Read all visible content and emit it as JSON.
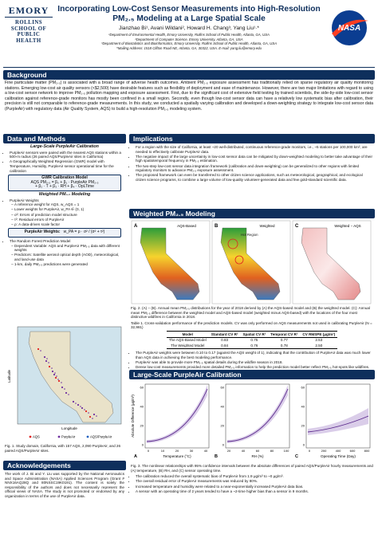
{
  "header": {
    "logo_left": [
      "EMORY",
      "ROLLINS",
      "SCHOOL OF",
      "PUBLIC",
      "HEALTH"
    ],
    "title_line1": "Incorporating Low-Cost Sensor Measurements into High-Resolution",
    "title_line2": "PM₂.₅ Modeling at a Large Spatial Scale",
    "authors": "Jianzhao Bi¹, Avani Wildani², Howard H. Chang³, Yang Liu¹·*",
    "affiliations": [
      "¹Department of Environmental Health, Emory University, Rollins School of Public Health, Atlanta, GA, USA",
      "²Department of Computer Science, Emory University, Atlanta, GA, USA",
      "³Department of Biostatistics and Bioinformatics, Emory University, Rollins School of Public Health, Atlanta, GA, USA",
      "*Mailing Address: 1518 Clifton Road NE, Atlanta, GA, 30322, USA. E-mail: yang.liu@emory.edu"
    ],
    "logo_right": "NASA"
  },
  "background": {
    "heading": "Background",
    "text": "Fine particulate matter (PM₂.₅) is associated with a broad range of adverse health outcomes. Ambient PM₂.₅ exposure assessment has traditionally relied on sparse regulatory air quality monitoring stations. Emerging low-cost air quality sensors (<$2,500) have desirable features such as flexibility of deployment and ease of maintenance. However, there are two major limitations with regard to using a low-cost sensor network to improve PM₂.₅ pollution mapping and exposure assessment. First, due to the significant cost of extensive field testing by trained scientists, the side-by-side low-cost sensor calibration against reference-grade monitors has mostly been confined in a small region. Secondly, even though low-cost sensor data can have a relatively low systematic bias after calibration, their precision is still not comparable to reference-grade measurements. In this study, we conducted a spatially varying calibration and developed a down-weighting strategy to integrate low-cost sensor data (PurpleAir) with regulatory data (Air Quality System, AQS) to build a high-resolution PM₂.₅ modeling system."
  },
  "methods": {
    "heading": "Data and Methods",
    "sub1": "Large-Scale PurpleAir Calibration",
    "bullets1": [
      "PurpleAir sensors were paired with the nearest AQS stations within a 500-m radius (26 paired AQS/PurpleAir sites in California)",
      "A Geographically Weighted Regression (GWR) model with Temperature, Humidity, PurpleAir sensor operational time for the calibration"
    ],
    "gwr_title": "GWR Calibration Model",
    "gwr_lines": [
      "AQS PM₂.₅ = β₀ + β₁ · PurpleAir PM₂.₅",
      "+ β₂ · T + β₃ · RH + β₄ · OpLTime"
    ],
    "sub2": "Weighted PM₂.₅ Modeling",
    "weights_title": "PurpleAir Weights",
    "weights_items": [
      "A reference weight for AQS, w_AQS = 1",
      "Lower weights for PurpleAir, w_PA ∈ (0, 1)",
      "σ²: Errors of prediction model structure",
      "τ²: Residual errors of PurpleAir",
      "ρ: A data-driven scale factor"
    ],
    "formula_label": "PurpleAir Weights:",
    "formula": "w_PA = ρ · σ² / (σ² + τ²)",
    "rf_title": "The Random Forest Prediction Model",
    "rf_items": [
      "Dependent Variable: AQS and PurpleAir PM₂.₅ data with different weights",
      "Predictors: Satellite aerosol optical depth (AOD), meteorological, and land-use data",
      "1-km, daily PM₂.₅ predictions were generated"
    ],
    "map_ylabel": "Latitude",
    "map_xlabel": "Longitude",
    "legend": [
      "AQS",
      "PurpleAir",
      "AQS/PurpleAir"
    ],
    "fig_caption": "Fig. 1. Study domain, California, with 157 AQS, 2,090 PurpleAir, and 26 paired AQS/PurpleAir sites."
  },
  "acknowledgements": {
    "heading": "Acknowledgements",
    "text": "The work of J. Bi and Y. Liu was supported by the National Aeronautics and Space Administration (NASA) Applied Sciences Program (Grant # NNX16AQ28Q and 80NSSC19K0191). The content is solely the responsibility of the authors and does not necessarily represent the official views of NASA. The study is not promoted or endorsed by any organization in terms of the use of PurpleAir data."
  },
  "implications": {
    "heading": "Implications",
    "bullets": [
      "For a region with the size of California, at least ~20 well-distributed, continuous reference-grade monitors, i.e., ~5 stations per 100,000 km², are needed to effectively calibrate PurpleAir data.",
      "The negative impact of the large uncertainty in low-cost sensor data can be mitigated by down-weighted modeling to better take advantage of their high spatiotemporal frequency in PM₂.₅ estimation.",
      "The two-step low-cost sensor data integration framework (calibration and down-weighting) can be generalized to other regions with limited regulatory monitors to advance PM₂.₅ exposure assessment.",
      "The proposed framework can even be transferred to other citizen science applications, such as meteorological, geographical, and ecological citizen science programs, to combine a large volume of low-quality volunteer-generated data and few gold-standard scientific data."
    ]
  },
  "weighted": {
    "heading": "Weighted PM₂.₅ Modeling",
    "maps": [
      {
        "letter": "A",
        "label": "AQS-Based"
      },
      {
        "letter": "B",
        "label": "Weighted"
      },
      {
        "letter": "C",
        "label": "Weighted − AQS"
      }
    ],
    "hot_label": "Hot Region",
    "fig_caption": "Fig. 2. (A) − (B). Annual mean PM₂.₅ distributions for the year of 2018 derived by (A) the AQS-based model and (B) the weighted model. (C): Annual mean PM₂.₅ difference between the weighted model and AQS-based model (weighted minus AQS-based) with the locations of the four most distinctive wildfires in California in 2018.",
    "table_caption": "Table 1. Cross-validation performance of the prediction models. CV was only performed on AQS measurements not used in calibrating PurpleAir (N = 32,981)",
    "table": {
      "header": [
        "Model",
        "Standard CV R²",
        "Spatial CV R²",
        "Temporal CV R²",
        "CV RMSPE (μg/m³)"
      ],
      "rows": [
        [
          "The AQS-Based Model",
          "0.83",
          "0.75",
          "0.77",
          "2.53"
        ],
        [
          "The Weighted Model",
          "0.84",
          "0.76",
          "0.78",
          "2.50"
        ]
      ]
    },
    "bullets": [
      "The PurpleAir weights were between 0.10 to 0.17 (against the AQS weight of 1), indicating that the contribution of PurpleAir data was much lower than AQS data in achieving the best modeling performance.",
      "PurpleAir was able to provide more PM₂.₅ spatial details during the wildfire season in 2018.",
      "Dense low-cost measurements provided more detailed PM₂.₅ information to help the prediction model better reflect PM₂.₅ hot-spots like wildfires."
    ]
  },
  "calibration": {
    "heading": "Large-Scale PurpleAir Calibration",
    "ylabel": "Absolute Difference (μg/m³)",
    "plots": [
      {
        "letter": "A",
        "xlabel": "Temperature (°C)",
        "xticks": [
          "0",
          "10",
          "20",
          "30",
          "40"
        ],
        "yticks": [
          "0",
          "20",
          "40",
          "60"
        ]
      },
      {
        "letter": "B",
        "xlabel": "RH (%)",
        "xticks": [
          "20",
          "40",
          "60",
          "80",
          "100"
        ],
        "yticks": [
          "0",
          "20",
          "40",
          "60"
        ]
      },
      {
        "letter": "C",
        "xlabel": "Operating Time (Day)",
        "xticks": [
          "0",
          "200",
          "400",
          "600",
          "800"
        ],
        "yticks": [
          "0",
          "20",
          "40",
          "60"
        ]
      }
    ],
    "fig_caption": "Fig. 3. The nonlinear relationships with 95% confidence intervals between the absolute differences of paired AQS/PurpleAir hourly measurements and (A) temperature, (B) RH, and (C) sensor operating time.",
    "bullets": [
      "The calibration reduced the overall systematic bias of PurpleAir from 1.9 μg/m³ to ~0 μg/m³.",
      "The overall residual error of PurpleAir measurements was reduced by 80%.",
      "Increased temperature and humidity were related to a near-exponentially increased PurpleAir data bias.",
      "A sensor with an operating time of 2 years tended to have a ~2-time higher bias than a sensor in 9 months."
    ]
  }
}
